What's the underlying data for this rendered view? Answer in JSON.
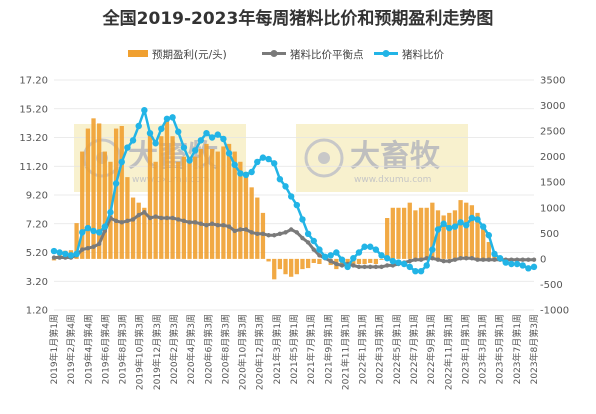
{
  "chart_data": {
    "type": "bar+line",
    "title": "全国2019-2023年每周猪料比价和预期盈利走势图",
    "legend": {
      "placement": "top",
      "items": [
        "预期盈利(元/头)",
        "猪料比价平衡点",
        "猪料比价"
      ]
    },
    "left_axis": {
      "ticks": [
        "17.20",
        "15.20",
        "13.20",
        "11.20",
        "9.20",
        "7.20",
        "5.20",
        "3.20",
        "1.20"
      ],
      "range": [
        1.2,
        17.2
      ]
    },
    "right_axis": {
      "ticks": [
        "3500",
        "3000",
        "2500",
        "2000",
        "1500",
        "1000",
        "500",
        "0",
        "-500",
        "-1000"
      ],
      "range": [
        -1000,
        3500
      ]
    },
    "x_labels": [
      "2019年1月第1周",
      "2019年2月第4周",
      "2019年4月第4周",
      "2019年6月第4周",
      "2019年8月第3周",
      "2019年10月第3周",
      "2019年12月第3周",
      "2020年2月第3周",
      "2020年4月第3周",
      "2020年6月第3周",
      "2020年8月第3周",
      "2020年10月第3周",
      "2020年12月第3周",
      "2021年3月第1周",
      "2021年5月第1周",
      "2021年7月第1周",
      "2021年9月第1周",
      "2021年11月第1周",
      "2022年1月第1周",
      "2022年3月第1周",
      "2022年5月第1周",
      "2022年7月第1周",
      "2022年9月第1周",
      "2022年11月第1周",
      "2023年1月第1周",
      "2023年3月第1周",
      "2023年5月第1周",
      "2023年7月第1周",
      "2023年8月第3周"
    ],
    "series": [
      {
        "name": "预期盈利(元/头)",
        "type": "bar",
        "axis": "right",
        "color": "#f0a030",
        "values": [
          -30,
          120,
          160,
          170,
          700,
          2100,
          2550,
          2750,
          2650,
          2100,
          1900,
          2550,
          2600,
          1600,
          1200,
          1100,
          1000,
          2500,
          1900,
          2400,
          2750,
          2400,
          1900,
          2000,
          2000,
          2000,
          2150,
          2250,
          2150,
          2100,
          2200,
          2250,
          2100,
          1900,
          1700,
          1400,
          1200,
          900,
          -50,
          -400,
          -200,
          -300,
          -350,
          -300,
          -200,
          -180,
          -80,
          -100,
          -10,
          -120,
          -200,
          -150,
          -140,
          -120,
          -100,
          -100,
          -80,
          -100,
          -20,
          800,
          1000,
          1000,
          1000,
          1100,
          950,
          1000,
          1000,
          1100,
          950,
          850,
          900,
          950,
          1150,
          1100,
          1050,
          900,
          650,
          330,
          80,
          40,
          5,
          5,
          5,
          5,
          5,
          5
        ]
      },
      {
        "name": "猪料比价平衡点",
        "type": "line",
        "axis": "left",
        "color": "#7a7a7a",
        "values": [
          4.85,
          4.85,
          4.85,
          4.85,
          5,
          5.4,
          5.5,
          5.6,
          5.8,
          6.7,
          7.6,
          7.4,
          7.3,
          7.4,
          7.5,
          7.8,
          8,
          7.6,
          7.7,
          7.6,
          7.6,
          7.6,
          7.5,
          7.4,
          7.3,
          7.3,
          7.2,
          7.1,
          7.2,
          7.1,
          7.1,
          7,
          6.7,
          6.8,
          6.8,
          6.6,
          6.5,
          6.5,
          6.4,
          6.4,
          6.5,
          6.6,
          6.8,
          6.6,
          6.2,
          5.9,
          5.4,
          5,
          4.8,
          4.6,
          4.4,
          4.3,
          4.4,
          4.3,
          4.2,
          4.2,
          4.2,
          4.2,
          4.2,
          4.3,
          4.3,
          4.4,
          4.5,
          4.6,
          4.7,
          4.7,
          4.8,
          4.8,
          4.7,
          4.6,
          4.6,
          4.7,
          4.8,
          4.8,
          4.8,
          4.7,
          4.7,
          4.7,
          4.7,
          4.7,
          4.7,
          4.7,
          4.7,
          4.7,
          4.7,
          4.7
        ]
      },
      {
        "name": "猪料比价",
        "type": "line",
        "axis": "left",
        "color": "#22b4e6",
        "values": [
          5.3,
          5.2,
          5.1,
          5,
          5.1,
          6.6,
          6.9,
          6.7,
          6.6,
          7,
          8,
          10,
          11.5,
          12.5,
          13,
          14,
          15.1,
          13.5,
          12.8,
          13.8,
          14.5,
          14.6,
          13.6,
          12.5,
          11.6,
          12.3,
          13,
          13.5,
          13.2,
          13.4,
          13.1,
          12.1,
          11.3,
          10.7,
          10.6,
          10.8,
          11.5,
          11.8,
          11.7,
          11.4,
          10.3,
          9.8,
          9.1,
          8.5,
          7.5,
          6.5,
          6,
          5.4,
          4.9,
          5,
          5.2,
          4.7,
          4.2,
          4.8,
          5.2,
          5.6,
          5.6,
          5.4,
          5,
          4.8,
          4.6,
          4.5,
          4.4,
          4.2,
          3.9,
          3.9,
          4.3,
          5.4,
          6.8,
          7.2,
          6.9,
          7,
          7.3,
          7.1,
          7.6,
          7.5,
          7,
          6.4,
          5.1,
          4.8,
          4.5,
          4.4,
          4.4,
          4.3,
          4.1,
          4.2
        ]
      }
    ]
  },
  "watermark": {
    "text": "大畜牧",
    "sub": "www.dxumu.com"
  }
}
